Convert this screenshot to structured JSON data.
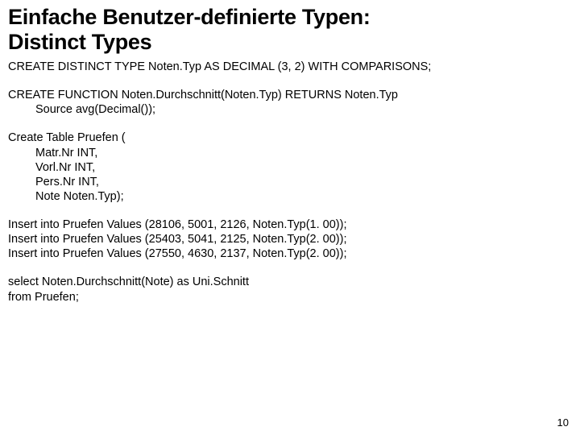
{
  "title_line1": "Einfache Benutzer-definierte Typen:",
  "title_line2": "Distinct Types",
  "b1": "CREATE DISTINCT TYPE Noten.Typ AS DECIMAL (3, 2) WITH COMPARISONS;",
  "b2a": "CREATE FUNCTION Noten.Durchschnitt(Noten.Typ) RETURNS Noten.Typ",
  "b2b": "Source avg(Decimal());",
  "b3a": "Create Table Pruefen (",
  "b3b": "Matr.Nr INT,",
  "b3c": "Vorl.Nr INT,",
  "b3d": "Pers.Nr INT,",
  "b3e": "Note Noten.Typ);",
  "b4a": "Insert into Pruefen Values (28106, 5001, 2126, Noten.Typ(1. 00));",
  "b4b": "Insert into Pruefen Values (25403, 5041, 2125, Noten.Typ(2. 00));",
  "b4c": "Insert into Pruefen Values (27550, 4630, 2137, Noten.Typ(2. 00));",
  "b5a": "select Noten.Durchschnitt(Note) as Uni.Schnitt",
  "b5b": "from Pruefen;",
  "page_number": "10",
  "colors": {
    "bg": "#ffffff",
    "text": "#000000"
  }
}
